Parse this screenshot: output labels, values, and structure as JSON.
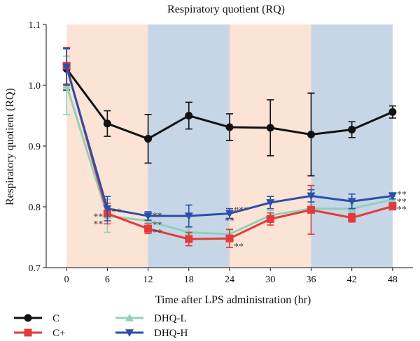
{
  "chart_data": {
    "type": "line",
    "title": "Respiratory quotient (RQ)",
    "xlabel": "Time after LPS administration (hr)",
    "ylabel": "Respiratory quotient (RQ)",
    "x": [
      0,
      6,
      12,
      18,
      24,
      30,
      36,
      42,
      48
    ],
    "x_tick_labels": [
      "0",
      "6",
      "12",
      "18",
      "24",
      "30",
      "36",
      "42",
      "48"
    ],
    "xlim": [
      -3,
      51
    ],
    "ylim": [
      0.7,
      1.1
    ],
    "y_ticks": [
      0.7,
      0.8,
      0.9,
      1.0,
      1.1
    ],
    "y_tick_labels": [
      "0.7",
      "0.8",
      "0.9",
      "1.0",
      "1.1"
    ],
    "grid": false,
    "legend_position": "bottom-left",
    "background_bands": [
      {
        "from": 0,
        "to": 12,
        "color": "#fbe3d6"
      },
      {
        "from": 12,
        "to": 24,
        "color": "#c6d6e6"
      },
      {
        "from": 24,
        "to": 36,
        "color": "#fbe3d6"
      },
      {
        "from": 36,
        "to": 48,
        "color": "#c6d6e6"
      }
    ],
    "series": [
      {
        "name": "C",
        "color": "#111111",
        "marker": "circle",
        "values": [
          1.027,
          0.937,
          0.912,
          0.95,
          0.931,
          0.93,
          0.919,
          0.927,
          0.956
        ],
        "errors": [
          0.035,
          0.021,
          0.04,
          0.022,
          0.022,
          0.046,
          0.068,
          0.013,
          0.01
        ]
      },
      {
        "name": "C+",
        "color": "#e23b3b",
        "marker": "square",
        "values": [
          1.032,
          0.789,
          0.764,
          0.747,
          0.748,
          0.78,
          0.795,
          0.782,
          0.801
        ],
        "errors": [
          0.03,
          0.017,
          0.008,
          0.011,
          0.015,
          0.01,
          0.04,
          0.007,
          0.006
        ]
      },
      {
        "name": "DHQ-L",
        "color": "#8fd1bc",
        "marker": "triangle-up",
        "values": [
          1.0,
          0.785,
          0.777,
          0.758,
          0.755,
          0.786,
          0.797,
          0.797,
          0.812
        ],
        "errors": [
          0.048,
          0.027,
          0.009,
          0.007,
          0.006,
          0.008,
          0.006,
          0.006,
          0.005
        ]
      },
      {
        "name": "DHQ-H",
        "color": "#2a4fa8",
        "marker": "triangle-down",
        "values": [
          1.03,
          0.797,
          0.785,
          0.785,
          0.789,
          0.807,
          0.818,
          0.809,
          0.818
        ],
        "errors": [
          0.03,
          0.02,
          0.007,
          0.018,
          0.008,
          0.01,
          0.01,
          0.012,
          0.005
        ]
      }
    ],
    "annotations": [
      {
        "text": "**",
        "x": 6,
        "y": 0.797,
        "place": "right"
      },
      {
        "text": "**",
        "x": 6,
        "y": 0.789,
        "place": "left"
      },
      {
        "text": "**",
        "x": 6,
        "y": 0.777,
        "place": "left"
      },
      {
        "text": "**",
        "x": 12,
        "y": 0.791,
        "place": "right"
      },
      {
        "text": "**",
        "x": 12,
        "y": 0.776,
        "place": "right"
      },
      {
        "text": "**",
        "x": 12,
        "y": 0.763,
        "place": "right"
      },
      {
        "text": "#**",
        "x": 24,
        "y": 0.8,
        "place": "right"
      },
      {
        "text": "**",
        "x": 24,
        "y": 0.765,
        "place": "above"
      },
      {
        "text": "**",
        "x": 24,
        "y": 0.74,
        "place": "right"
      },
      {
        "text": "**",
        "x": 48,
        "y": 0.826,
        "place": "right"
      },
      {
        "text": "**",
        "x": 48,
        "y": 0.814,
        "place": "right"
      },
      {
        "text": "**",
        "x": 48,
        "y": 0.801,
        "place": "right"
      }
    ]
  }
}
